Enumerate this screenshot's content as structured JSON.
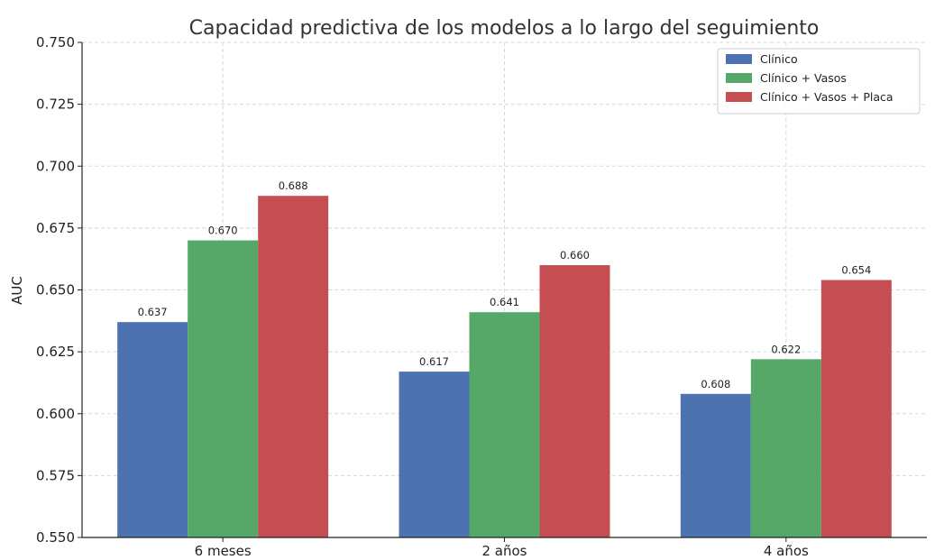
{
  "chart_data": {
    "type": "bar",
    "title": "Capacidad predictiva de los modelos a lo largo del seguimiento",
    "xlabel": "",
    "ylabel": "AUC",
    "categories": [
      "6 meses",
      "2 años",
      "4 años"
    ],
    "series": [
      {
        "name": "Clínico",
        "color": "#4c72b0",
        "values": [
          0.637,
          0.617,
          0.608
        ]
      },
      {
        "name": "Clínico + Vasos",
        "color": "#55a868",
        "values": [
          0.67,
          0.641,
          0.622
        ]
      },
      {
        "name": "Clínico + Vasos + Placa",
        "color": "#c44e52",
        "values": [
          0.688,
          0.66,
          0.654
        ]
      }
    ],
    "data_labels": [
      [
        "0.637",
        "0.617",
        "0.608"
      ],
      [
        "0.670",
        "0.641",
        "0.622"
      ],
      [
        "0.688",
        "0.660",
        "0.654"
      ]
    ],
    "ylim": [
      0.55,
      0.75
    ],
    "yticks": [
      "0.550",
      "0.575",
      "0.600",
      "0.625",
      "0.650",
      "0.675",
      "0.700",
      "0.725",
      "0.750"
    ],
    "grid": true,
    "legend_position": "top-right"
  }
}
